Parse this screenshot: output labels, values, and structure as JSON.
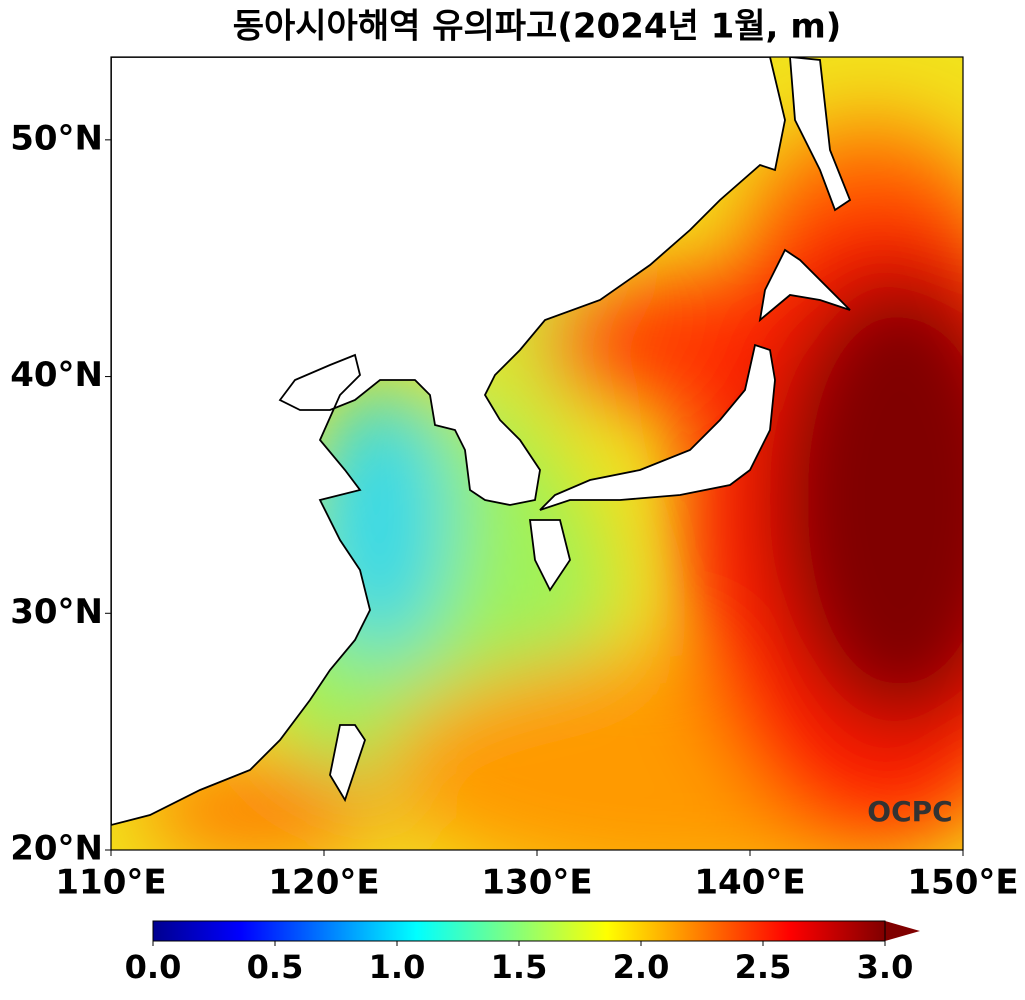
{
  "title": "동아시아해역 유의파고(2024년 1월, m)",
  "map": {
    "xlim": [
      110,
      150
    ],
    "ylim": [
      20,
      53.5
    ],
    "xticks": [
      {
        "value": 110,
        "label": "110°E"
      },
      {
        "value": 120,
        "label": "120°E"
      },
      {
        "value": 130,
        "label": "130°E"
      },
      {
        "value": 140,
        "label": "140°E"
      },
      {
        "value": 150,
        "label": "150°E"
      }
    ],
    "yticks": [
      {
        "value": 20,
        "label": "20°N"
      },
      {
        "value": 30,
        "label": "30°N"
      },
      {
        "value": 40,
        "label": "40°N"
      },
      {
        "value": 50,
        "label": "50°N"
      }
    ]
  },
  "colorbar": {
    "lim": [
      0,
      3
    ],
    "ticks": [
      {
        "value": 0,
        "label": "0.0"
      },
      0.5,
      {
        "value": 1,
        "label": "1.0"
      },
      1.5,
      {
        "value": 2,
        "label": "2.0"
      },
      2.5,
      {
        "value": 3,
        "label": "3.0"
      }
    ]
  },
  "logo": "OCPC"
}
